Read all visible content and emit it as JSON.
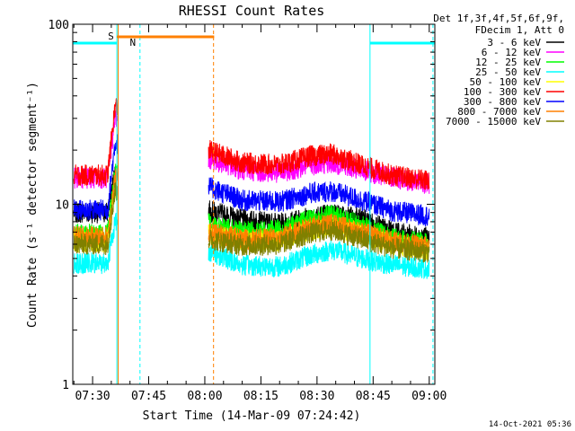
{
  "chart_data": {
    "type": "line",
    "title": "RHESSI Count Rates",
    "xlabel": "Start Time (14-Mar-09 07:24:42)",
    "ylabel": "Count Rate (s⁻¹ detector segment⁻¹)",
    "yscale": "log",
    "ylim": [
      1,
      100
    ],
    "xlim": [
      "07:24:42",
      "09:01:30"
    ],
    "x_ticks": [
      "07:30",
      "07:45",
      "08:00",
      "08:15",
      "08:30",
      "08:45",
      "09:00"
    ],
    "y_ticks": [
      "1",
      "10",
      "100"
    ],
    "legend": {
      "placement": "right",
      "header": [
        "Det 1f,3f,4f,5f,6f,9f,",
        "FDecim 1, Att 0"
      ],
      "entries": [
        {
          "label": "3 - 6 keV",
          "color": "#000000"
        },
        {
          "label": "6 - 12 keV",
          "color": "#ff00ff"
        },
        {
          "label": "12 - 25 keV",
          "color": "#00ff00"
        },
        {
          "label": "25 - 50 keV",
          "color": "#00ffff"
        },
        {
          "label": "50 - 100 keV",
          "color": "#ffff00"
        },
        {
          "label": "100 - 300 keV",
          "color": "#ff0000"
        },
        {
          "label": "300 - 800 keV",
          "color": "#0000ff"
        },
        {
          "label": "800 - 7000 keV",
          "color": "#ff8000"
        },
        {
          "label": "7000 - 15000 keV",
          "color": "#808000"
        }
      ]
    },
    "series": [
      {
        "name": "3 - 6 keV",
        "color": "#000000",
        "x": [
          "07:25",
          "07:34",
          "07:36",
          "08:01",
          "08:10",
          "08:20",
          "08:28",
          "08:34",
          "08:42",
          "08:50",
          "09:00"
        ],
        "y": [
          9.0,
          9.0,
          15,
          9.2,
          8.2,
          7.8,
          8.5,
          8.9,
          8.3,
          7.0,
          6.5
        ]
      },
      {
        "name": "6 - 12 keV",
        "color": "#ff00ff",
        "x": [
          "07:25",
          "07:34",
          "07:36",
          "08:01",
          "08:10",
          "08:20",
          "08:28",
          "08:34",
          "08:42",
          "08:50",
          "09:00"
        ],
        "y": [
          14,
          14,
          30,
          18,
          15.5,
          15,
          16.5,
          17,
          15.5,
          14,
          13
        ]
      },
      {
        "name": "12 - 25 keV",
        "color": "#00ff00",
        "x": [
          "07:25",
          "07:34",
          "07:36",
          "08:01",
          "08:10",
          "08:20",
          "08:28",
          "08:34",
          "08:42",
          "08:50",
          "09:00"
        ],
        "y": [
          6.8,
          6.8,
          15,
          7.8,
          7.0,
          7.2,
          8.2,
          8.7,
          7.6,
          6.5,
          6.0
        ]
      },
      {
        "name": "25 - 50 keV",
        "color": "#00ffff",
        "x": [
          "07:25",
          "07:34",
          "07:36",
          "08:01",
          "08:10",
          "08:20",
          "08:28",
          "08:34",
          "08:42",
          "08:50",
          "09:00"
        ],
        "y": [
          4.7,
          4.7,
          8.0,
          5.5,
          4.6,
          4.5,
          5.2,
          5.6,
          5.0,
          4.6,
          4.4
        ]
      },
      {
        "name": "50 - 100 keV",
        "color": "#ffff00",
        "x": [
          "07:25",
          "07:34",
          "07:36",
          "08:01",
          "08:10",
          "08:20",
          "08:28",
          "08:34",
          "08:42",
          "08:50",
          "09:00"
        ],
        "y": [
          6.2,
          6.2,
          12,
          6.8,
          6.2,
          6.3,
          7.2,
          7.6,
          6.8,
          6.0,
          5.6
        ]
      },
      {
        "name": "100 - 300 keV",
        "color": "#ff0000",
        "x": [
          "07:25",
          "07:34",
          "07:36",
          "08:01",
          "08:10",
          "08:20",
          "08:28",
          "08:34",
          "08:42",
          "08:50",
          "09:00"
        ],
        "y": [
          14.5,
          14.5,
          35,
          20,
          17,
          16.5,
          18.5,
          19,
          16.5,
          14.5,
          13.5
        ]
      },
      {
        "name": "300 - 800 keV",
        "color": "#0000ff",
        "x": [
          "07:25",
          "07:34",
          "07:36",
          "08:01",
          "08:10",
          "08:20",
          "08:28",
          "08:34",
          "08:42",
          "08:50",
          "09:00"
        ],
        "y": [
          9.3,
          9.3,
          22,
          12.5,
          10.5,
          10.3,
          11.5,
          11.8,
          10.5,
          9.2,
          8.6
        ]
      },
      {
        "name": "800 - 7000 keV",
        "color": "#ff8000",
        "x": [
          "07:25",
          "07:34",
          "07:36",
          "08:01",
          "08:10",
          "08:20",
          "08:28",
          "08:34",
          "08:42",
          "08:50",
          "09:00"
        ],
        "y": [
          6.6,
          6.6,
          14,
          7.0,
          6.4,
          6.5,
          7.5,
          7.8,
          7.0,
          6.2,
          5.8
        ]
      },
      {
        "name": "7000 - 15000 keV",
        "color": "#808000",
        "x": [
          "07:25",
          "07:34",
          "07:36",
          "08:01",
          "08:10",
          "08:20",
          "08:28",
          "08:34",
          "08:42",
          "08:50",
          "09:00"
        ],
        "y": [
          6.0,
          6.0,
          12,
          6.4,
          5.9,
          6.0,
          6.9,
          7.2,
          6.4,
          5.7,
          5.4
        ]
      }
    ],
    "annotations": {
      "night_bars": [
        {
          "from": "07:24:42",
          "to": "07:36:30",
          "color": "#00ffff"
        },
        {
          "from": "08:44:10",
          "to": "09:01:30",
          "color": "#00ffff"
        }
      ],
      "saa_bar": {
        "label": "S",
        "from": "07:36:30",
        "to": "08:02:30",
        "color": "#ff8000"
      },
      "night_label": {
        "label": "N",
        "at": "07:38:30",
        "color": "#00ffff"
      },
      "vertical_lines": [
        {
          "time": "07:24:42",
          "color": "#00ffff",
          "style": "solid"
        },
        {
          "time": "07:36:30",
          "color": "#00ffff",
          "style": "solid"
        },
        {
          "time": "07:36:50",
          "color": "#ff8000",
          "style": "solid"
        },
        {
          "time": "07:42:40",
          "color": "#00ffff",
          "style": "dashed"
        },
        {
          "time": "08:02:20",
          "color": "#ff8000",
          "style": "dashed"
        },
        {
          "time": "08:44:10",
          "color": "#00ffff",
          "style": "solid"
        },
        {
          "time": "09:01:00",
          "color": "#00ffff",
          "style": "dashed"
        }
      ]
    },
    "grid": false
  },
  "timestamp": "14-Oct-2021 05:36"
}
